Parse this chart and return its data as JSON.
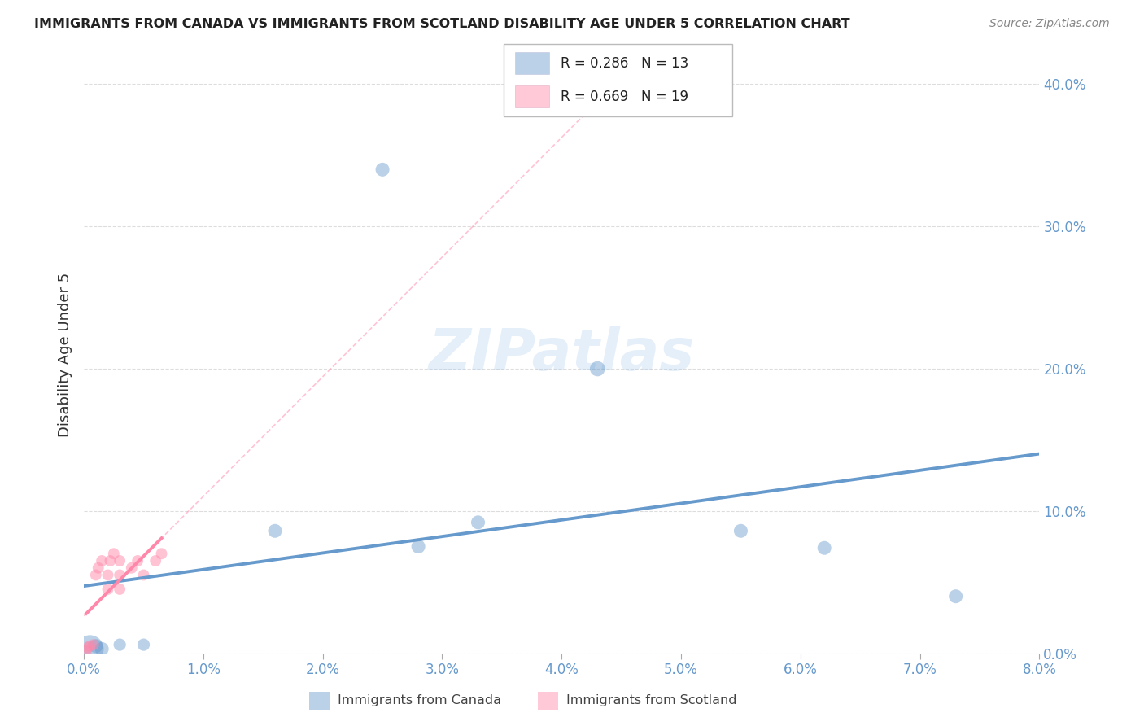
{
  "title": "IMMIGRANTS FROM CANADA VS IMMIGRANTS FROM SCOTLAND DISABILITY AGE UNDER 5 CORRELATION CHART",
  "source": "Source: ZipAtlas.com",
  "ylabel": "Disability Age Under 5",
  "xlim": [
    0.0,
    0.08
  ],
  "ylim": [
    0.0,
    0.42
  ],
  "xticks": [
    0.0,
    0.01,
    0.02,
    0.03,
    0.04,
    0.05,
    0.06,
    0.07,
    0.08
  ],
  "yticks": [
    0.0,
    0.1,
    0.2,
    0.3,
    0.4
  ],
  "canada_color": "#6699CC",
  "scotland_color": "#FF88AA",
  "canada_R": 0.286,
  "canada_N": 13,
  "scotland_R": 0.669,
  "scotland_N": 19,
  "canada_scatter_x": [
    0.0005,
    0.001,
    0.0015,
    0.003,
    0.005,
    0.025,
    0.016,
    0.028,
    0.033,
    0.043,
    0.055,
    0.062,
    0.073
  ],
  "canada_scatter_y": [
    0.003,
    0.005,
    0.003,
    0.006,
    0.006,
    0.34,
    0.086,
    0.075,
    0.092,
    0.2,
    0.086,
    0.074,
    0.04
  ],
  "canada_sizes": [
    600,
    150,
    150,
    120,
    120,
    150,
    150,
    150,
    150,
    180,
    150,
    150,
    150
  ],
  "scotland_scatter_x": [
    0.0002,
    0.0003,
    0.0005,
    0.0008,
    0.001,
    0.0012,
    0.0015,
    0.002,
    0.002,
    0.0022,
    0.0025,
    0.003,
    0.003,
    0.003,
    0.004,
    0.0045,
    0.005,
    0.006,
    0.0065
  ],
  "scotland_scatter_y": [
    0.002,
    0.004,
    0.005,
    0.006,
    0.055,
    0.06,
    0.065,
    0.045,
    0.055,
    0.065,
    0.07,
    0.045,
    0.055,
    0.065,
    0.06,
    0.065,
    0.055,
    0.065,
    0.07
  ],
  "scotland_sizes": [
    100,
    100,
    100,
    100,
    100,
    100,
    100,
    100,
    100,
    100,
    100,
    100,
    100,
    100,
    100,
    100,
    100,
    100,
    100
  ],
  "legend_entries": [
    "Immigrants from Canada",
    "Immigrants from Scotland"
  ],
  "watermark": "ZIPatlas",
  "background_color": "#ffffff",
  "grid_color": "#dddddd"
}
